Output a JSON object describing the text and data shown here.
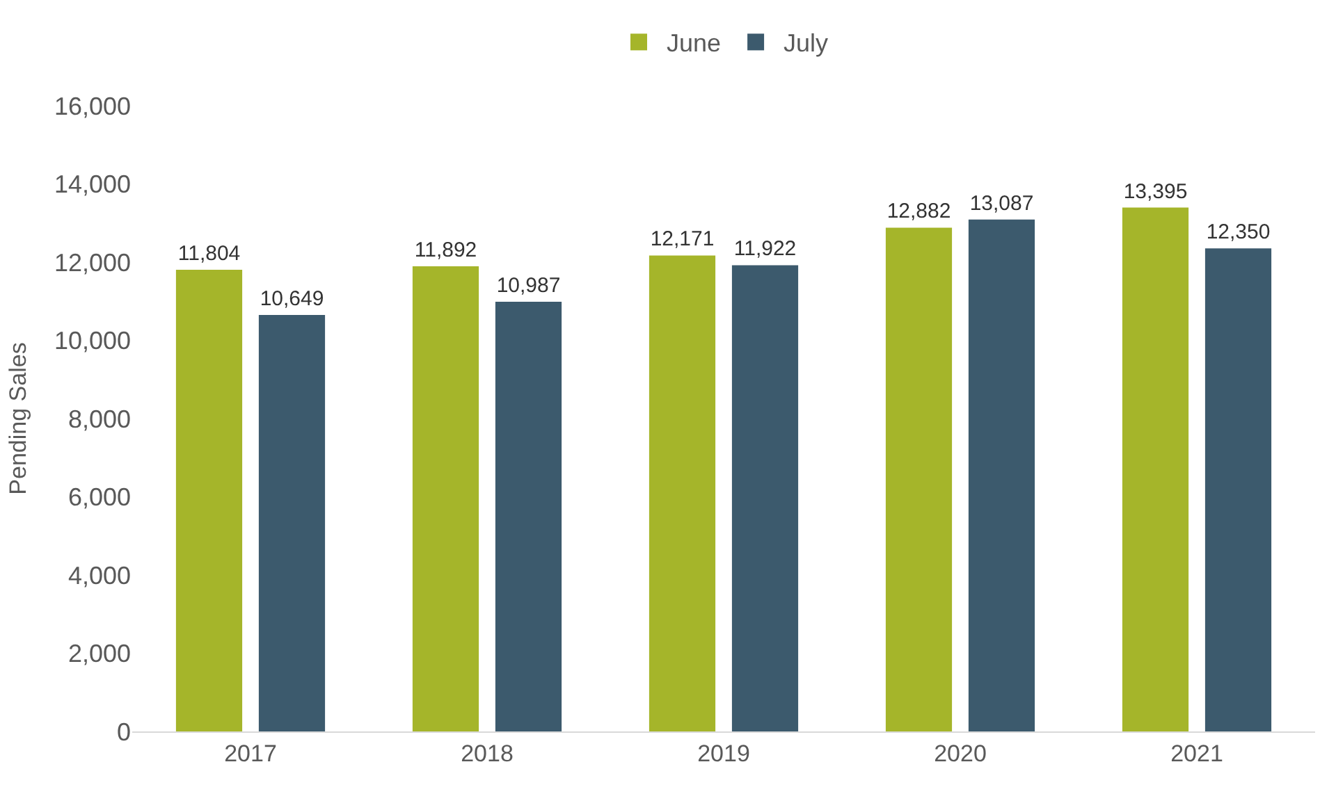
{
  "chart_data": {
    "type": "bar",
    "ylabel": "Pending Sales",
    "categories": [
      "2017",
      "2018",
      "2019",
      "2020",
      "2021"
    ],
    "series": [
      {
        "name": "June",
        "color": "#a5b52a",
        "values": [
          11804,
          11892,
          12171,
          12882,
          13395
        ],
        "value_labels": [
          "11,804",
          "11,892",
          "12,171",
          "12,882",
          "13,395"
        ]
      },
      {
        "name": "July",
        "color": "#3c5a6d",
        "values": [
          10649,
          10987,
          11922,
          13087,
          12350
        ],
        "value_labels": [
          "10,649",
          "10,987",
          "11,922",
          "13,087",
          "12,350"
        ]
      }
    ],
    "ylim": [
      0,
      16000
    ],
    "yticks": [
      0,
      {
        "value": 2000,
        "label": "2,000"
      },
      {
        "value": 4000,
        "label": "4,000"
      },
      {
        "value": 6000,
        "label": "6,000"
      },
      {
        "value": 8000,
        "label": "8,000"
      },
      {
        "value": 10000,
        "label": "10,000"
      },
      {
        "value": 12000,
        "label": "12,000"
      },
      {
        "value": 14000,
        "label": "14,000"
      },
      {
        "value": 16000,
        "label": "16,000"
      }
    ],
    "grid": false,
    "legend": "top"
  }
}
